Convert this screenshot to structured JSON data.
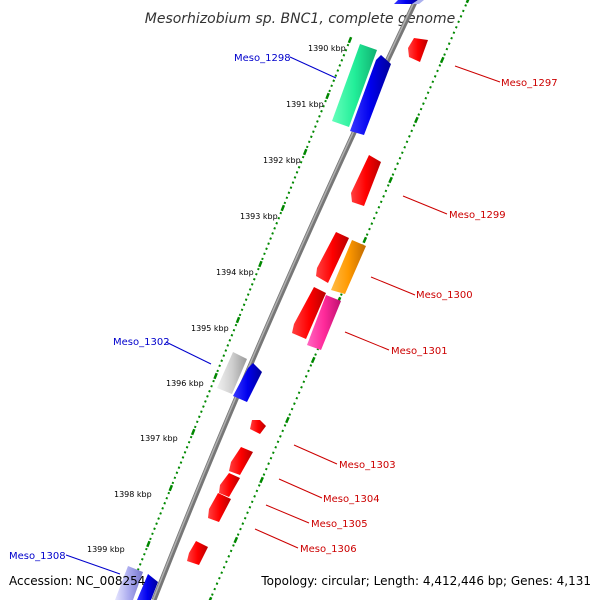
{
  "title": "Mesorhizobium sp. BNC1, complete genome",
  "footer": {
    "accession": "Accession: NC_008254",
    "topology": "Topology: circular; Length: 4,412,446 bp; Genes: 4,131"
  },
  "ticks": [
    {
      "id": "t1390",
      "label": "1390 kbp"
    },
    {
      "id": "t1391",
      "label": "1391 kbp"
    },
    {
      "id": "t1392",
      "label": "1392 kbp"
    },
    {
      "id": "t1393",
      "label": "1393 kbp"
    },
    {
      "id": "t1394",
      "label": "1394 kbp"
    },
    {
      "id": "t1395",
      "label": "1395 kbp"
    },
    {
      "id": "t1396",
      "label": "1396 kbp"
    },
    {
      "id": "t1397",
      "label": "1397 kbp"
    },
    {
      "id": "t1398",
      "label": "1398 kbp"
    },
    {
      "id": "t1399",
      "label": "1399 kbp"
    }
  ],
  "gene_labels": [
    {
      "id": "meso-1297",
      "name": "Meso_1297",
      "color": "#cc0000"
    },
    {
      "id": "meso-1298",
      "name": "Meso_1298",
      "color": "#0000cc"
    },
    {
      "id": "meso-1299",
      "name": "Meso_1299",
      "color": "#cc0000"
    },
    {
      "id": "meso-1300",
      "name": "Meso_1300",
      "color": "#cc0000"
    },
    {
      "id": "meso-1301",
      "name": "Meso_1301",
      "color": "#cc0000"
    },
    {
      "id": "meso-1302",
      "name": "Meso_1302",
      "color": "#0000cc"
    },
    {
      "id": "meso-1303",
      "name": "Meso_1303",
      "color": "#cc0000"
    },
    {
      "id": "meso-1304",
      "name": "Meso_1304",
      "color": "#cc0000"
    },
    {
      "id": "meso-1305",
      "name": "Meso_1305",
      "color": "#cc0000"
    },
    {
      "id": "meso-1306",
      "name": "Meso_1306",
      "color": "#cc0000"
    },
    {
      "id": "meso-1308",
      "name": "Meso_1308",
      "color": "#0000cc"
    }
  ],
  "colors": {
    "red": "#ff0000",
    "blue": "#0000ff",
    "green": "#22ee99",
    "orange": "#ff9900",
    "pink": "#ff33aa",
    "grey": "#c8c8c8",
    "backbone": "#888888",
    "tick": "#008800"
  }
}
